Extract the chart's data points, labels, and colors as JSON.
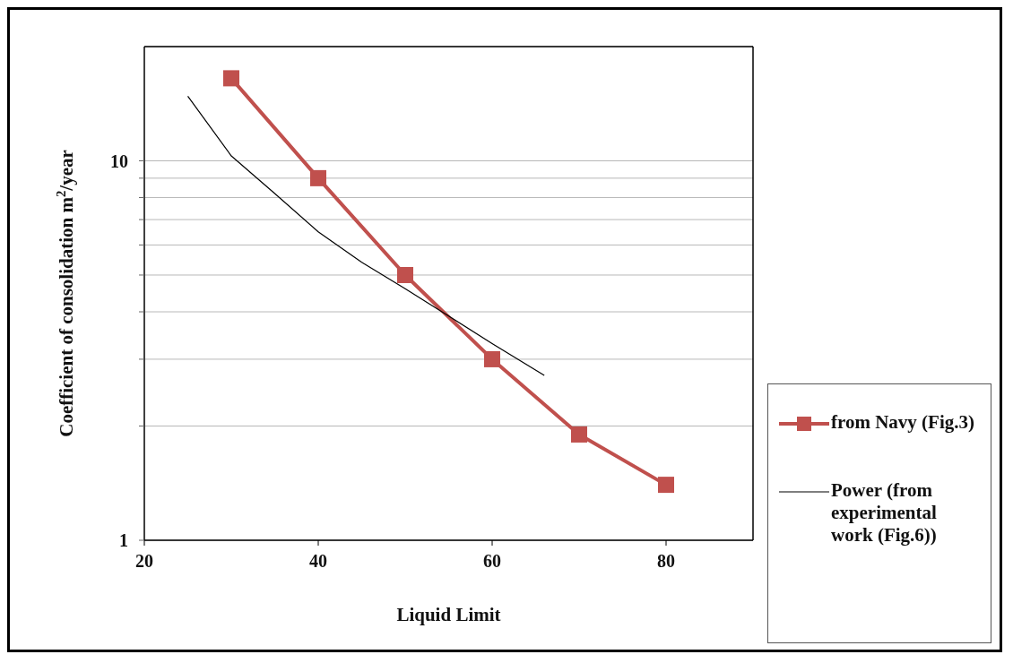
{
  "chart_data": {
    "type": "line",
    "xlabel": "Liquid Limit",
    "ylabel": "Coefficient of consolidation m$^{2}$/year",
    "xlim": [
      20,
      90
    ],
    "xticks": [
      20,
      40,
      60,
      80
    ],
    "ylim": [
      1,
      20
    ],
    "yticks": [
      1,
      {
        "value": 2,
        "label": null
      },
      {
        "value": 3,
        "label": null
      },
      {
        "value": 4,
        "label": null
      },
      {
        "value": 5,
        "label": null
      },
      {
        "value": 6,
        "label": null
      },
      {
        "value": 7,
        "label": null
      },
      {
        "value": 8,
        "label": null
      },
      {
        "value": 9,
        "label": null
      },
      10
    ],
    "log": "y",
    "grid": "y",
    "legend": "right",
    "series": [
      {
        "name": "from Navy (Fig.3)",
        "color": "#c0504d",
        "marker": "square",
        "x": [
          30,
          40,
          50,
          60,
          70,
          80
        ],
        "values": [
          16.5,
          9.0,
          5.0,
          3.0,
          1.9,
          1.4
        ]
      },
      {
        "name": "Power (from experimental work (Fig.6))",
        "color": "#000000",
        "marker": "none",
        "x": [
          25,
          30,
          35,
          40,
          45,
          50,
          55,
          60,
          66
        ],
        "values": [
          14.8,
          10.3,
          8.2,
          6.5,
          5.4,
          4.6,
          3.9,
          3.3,
          2.72
        ]
      }
    ]
  }
}
